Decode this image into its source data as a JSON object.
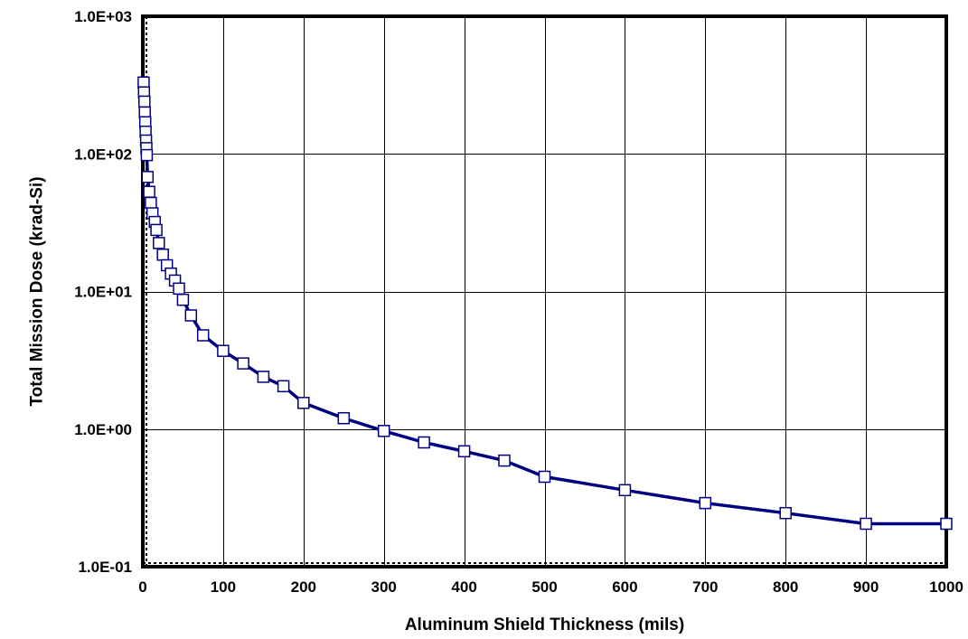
{
  "chart_data": {
    "type": "line",
    "title": "",
    "xlabel": "Aluminum Shield Thickness (mils)",
    "ylabel": "Total Mission Dose (krad-Si)",
    "xlim": [
      0,
      1000
    ],
    "ylim": [
      0.1,
      1000
    ],
    "yscale": "log",
    "grid": true,
    "legend": "none",
    "x_ticks": [
      0,
      100,
      200,
      300,
      400,
      500,
      600,
      700,
      800,
      900,
      1000
    ],
    "x_tick_labels": [
      "0",
      "100",
      "200",
      "300",
      "400",
      "500",
      "600",
      "700",
      "800",
      "900",
      "1000"
    ],
    "y_ticks": [
      0.1,
      1,
      10,
      100,
      1000
    ],
    "y_tick_labels": [
      "1.0E-01",
      "1.0E+00",
      "1.0E+01",
      "1.0E+02",
      "1.0E+03"
    ],
    "series": [
      {
        "color": "#000080",
        "marker": "square",
        "marker_fill": "#ffffff",
        "x": [
          1,
          1.5,
          2,
          2.5,
          3,
          3.5,
          4,
          4.5,
          5,
          6,
          8,
          10,
          12,
          15,
          17,
          20,
          25,
          30,
          35,
          40,
          45,
          50,
          60,
          75,
          100,
          125,
          150,
          175,
          200,
          250,
          300,
          350,
          400,
          450,
          500,
          600,
          700,
          800,
          900,
          1000
        ],
        "y": [
          330,
          280,
          240,
          200,
          170,
          145,
          125,
          110,
          98,
          68,
          53,
          44,
          37,
          32,
          28,
          22.5,
          18.5,
          15.5,
          13.5,
          12,
          10.5,
          8.7,
          6.7,
          4.8,
          3.7,
          3.0,
          2.4,
          2.05,
          1.55,
          1.2,
          0.97,
          0.8,
          0.69,
          0.59,
          0.45,
          0.36,
          0.29,
          0.245,
          0.205,
          0.205
        ]
      }
    ]
  }
}
